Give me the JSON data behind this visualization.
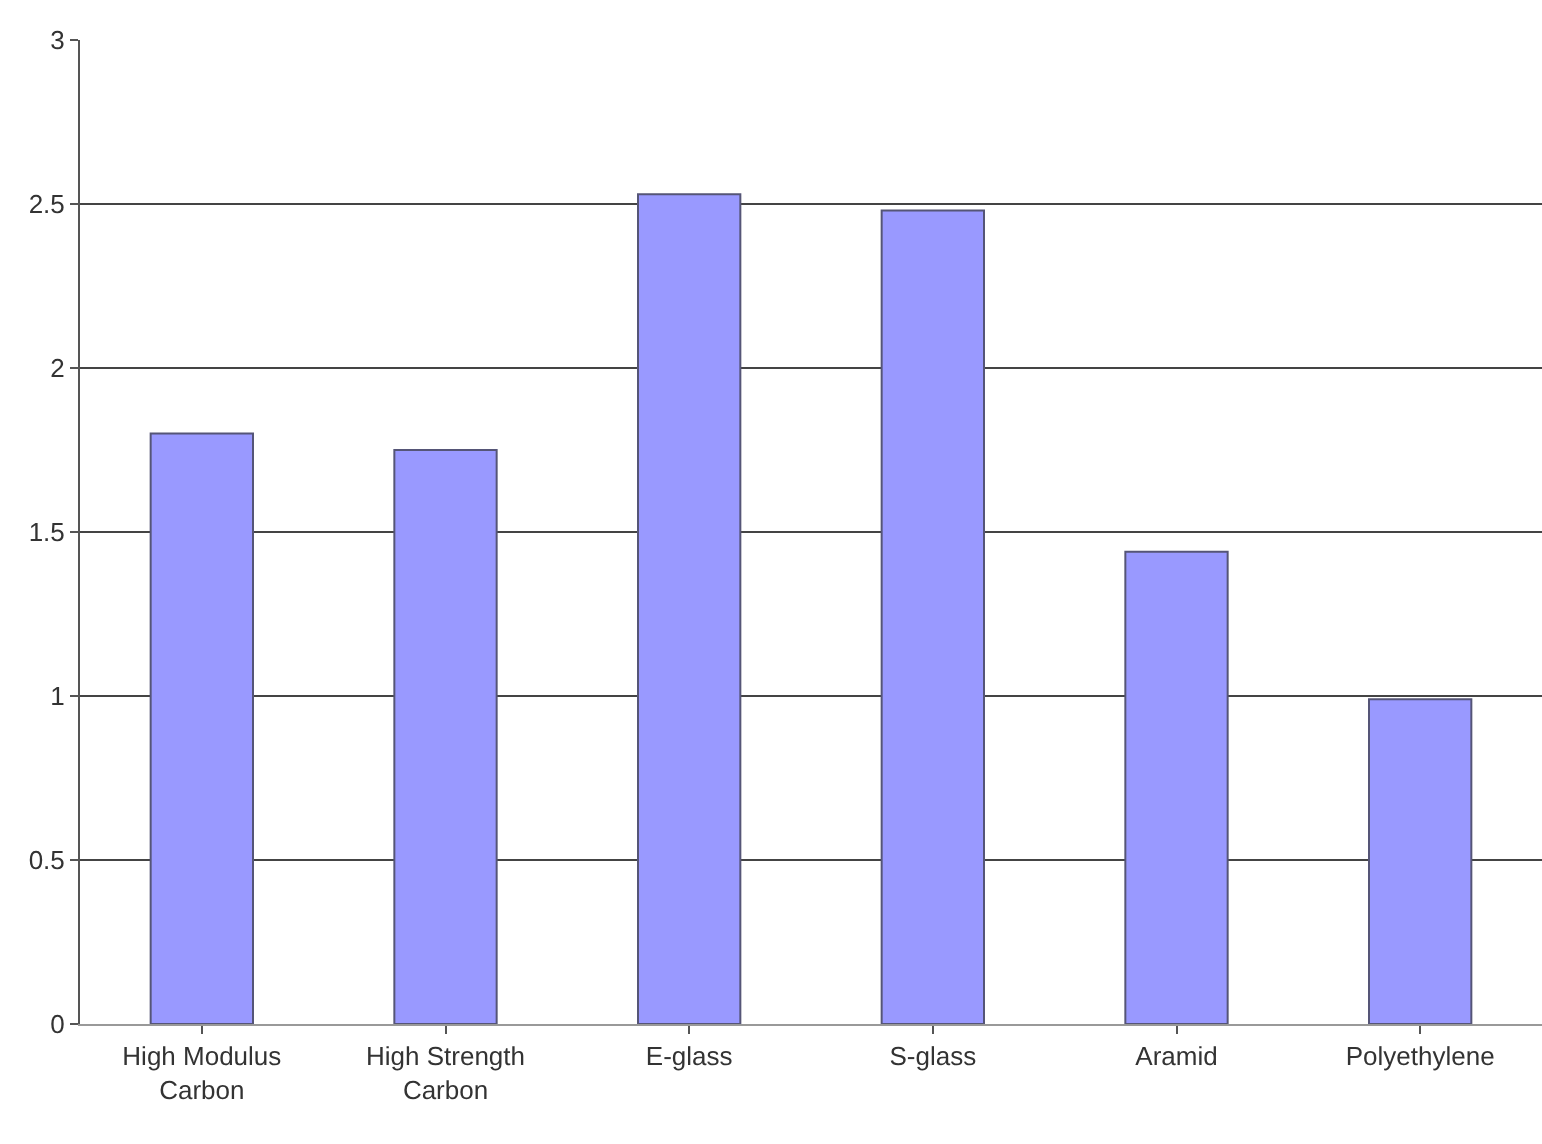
{
  "chart_data": {
    "type": "bar",
    "categories": [
      "High Modulus\nCarbon",
      "High Strength\nCarbon",
      "E-glass",
      "S-glass",
      "Aramid",
      "Polyethylene"
    ],
    "values": [
      1.8,
      1.75,
      2.53,
      2.48,
      1.44,
      0.99
    ],
    "color": "#9999ff",
    "ylim": [
      0,
      3
    ],
    "yticks": [
      0,
      0.5,
      1,
      1.5,
      2,
      2.5,
      3
    ],
    "grid": "y"
  }
}
